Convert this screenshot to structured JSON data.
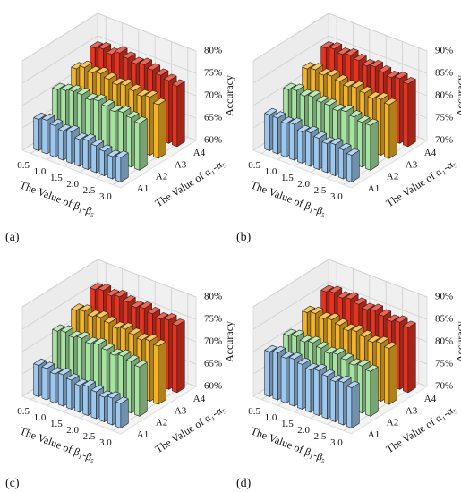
{
  "chart_data": [
    {
      "type": "bar3d",
      "panel_label": "(a)",
      "xlabel": "The Value of β₁-β₅",
      "ylabel": "The Value of α₁-α₅",
      "zlabel": "Accuracy",
      "x": [
        0.5,
        0.75,
        1.0,
        1.25,
        1.5,
        1.75,
        2.0,
        2.25,
        2.5,
        2.75,
        3.0
      ],
      "xlim": [
        0.25,
        3.25
      ],
      "xticks": [
        0.5,
        {
          "value": 1,
          "label": "1.0"
        },
        1.5,
        {
          "value": 2,
          "label": "2.0"
        },
        2.5,
        {
          "value": 3,
          "label": "3.0"
        }
      ],
      "zlim": [
        60,
        80
      ],
      "zticks": [
        {
          "value": 60,
          "label": "60%"
        },
        {
          "value": 65,
          "label": "65%"
        },
        {
          "value": 70,
          "label": "70%"
        },
        {
          "value": 75,
          "label": "75%"
        },
        {
          "value": 80,
          "label": "80%"
        }
      ],
      "series": [
        {
          "name": "A1",
          "color": "#9cc8ef",
          "values": [
            67,
            67.5,
            67,
            66.5,
            67,
            66,
            66.5,
            66,
            65.5,
            65,
            65.5
          ]
        },
        {
          "name": "A2",
          "color": "#a6e3a1",
          "values": [
            71,
            71.5,
            72,
            72,
            71.5,
            72,
            71.5,
            71,
            71.5,
            71,
            70.5
          ]
        },
        {
          "name": "A3",
          "color": "#f5b324",
          "values": [
            73,
            74,
            73.5,
            74,
            73.5,
            73,
            73.5,
            73,
            72.5,
            73,
            72
          ]
        },
        {
          "name": "A4",
          "color": "#e8321e",
          "values": [
            75,
            75.5,
            75,
            76,
            75.5,
            75,
            75.5,
            75,
            74.5,
            74,
            73.5
          ]
        }
      ]
    },
    {
      "type": "bar3d",
      "panel_label": "(b)",
      "xlabel": "The Value of β₁-β₅",
      "ylabel": "The Value of α₁-α₅",
      "zlabel": "Accuracy",
      "x": [
        0.5,
        0.75,
        1.0,
        1.25,
        1.5,
        1.75,
        2.0,
        2.25,
        2.5,
        2.75,
        3.0
      ],
      "xlim": [
        0.25,
        3.25
      ],
      "xticks": [
        0.5,
        {
          "value": 1,
          "label": "1.0"
        },
        1.5,
        {
          "value": 2,
          "label": "2.0"
        },
        2.5,
        {
          "value": 3,
          "label": "3.0"
        }
      ],
      "zlim": [
        70,
        90
      ],
      "zticks": [
        {
          "value": 70,
          "label": "70%"
        },
        {
          "value": 75,
          "label": "75%"
        },
        {
          "value": 80,
          "label": "80%"
        },
        {
          "value": 85,
          "label": "85%"
        },
        {
          "value": 90,
          "label": "90%"
        }
      ],
      "series": [
        {
          "name": "A1",
          "color": "#9cc8ef",
          "values": [
            78,
            78,
            77.5,
            78,
            77,
            77.5,
            77,
            76.5,
            77,
            76.5,
            76
          ]
        },
        {
          "name": "A2",
          "color": "#a6e3a1",
          "values": [
            81,
            81.5,
            81,
            81.5,
            81,
            81,
            80.5,
            81,
            80.5,
            80,
            80
          ]
        },
        {
          "name": "A3",
          "color": "#f5b324",
          "values": [
            83,
            83.5,
            83,
            83.5,
            83,
            82.5,
            83,
            82.5,
            82,
            82.5,
            82
          ]
        },
        {
          "name": "A4",
          "color": "#e8321e",
          "values": [
            85,
            85.5,
            85,
            85.5,
            85,
            84.5,
            85,
            84.5,
            84,
            84.5,
            84
          ]
        }
      ]
    },
    {
      "type": "bar3d",
      "panel_label": "(c)",
      "xlabel": "The Value of β₁-β₅",
      "ylabel": "The Value of α₁-α₅",
      "zlabel": "Accuracy",
      "x": [
        0.5,
        0.75,
        1.0,
        1.25,
        1.5,
        1.75,
        2.0,
        2.25,
        2.5,
        2.75,
        3.0
      ],
      "xlim": [
        0.25,
        3.25
      ],
      "xticks": [
        0.5,
        {
          "value": 1,
          "label": "1.0"
        },
        1.5,
        {
          "value": 2,
          "label": "2.0"
        },
        2.5,
        {
          "value": 3,
          "label": "3.0"
        }
      ],
      "zlim": [
        60,
        80
      ],
      "zticks": [
        {
          "value": 60,
          "label": "60%"
        },
        {
          "value": 65,
          "label": "65%"
        },
        {
          "value": 70,
          "label": "70%"
        },
        {
          "value": 75,
          "label": "75%"
        },
        {
          "value": 80,
          "label": "80%"
        }
      ],
      "series": [
        {
          "name": "A1",
          "color": "#9cc8ef",
          "values": [
            67,
            67,
            66.5,
            67,
            66.5,
            66,
            66.5,
            66,
            65.5,
            66,
            65.5
          ]
        },
        {
          "name": "A2",
          "color": "#a6e3a1",
          "values": [
            72,
            72.5,
            72,
            72.5,
            72,
            72.5,
            72,
            71.5,
            72,
            71.5,
            71
          ]
        },
        {
          "name": "A3",
          "color": "#f5b324",
          "values": [
            74,
            74.5,
            74,
            74.5,
            74,
            73.5,
            74,
            73.5,
            73,
            73.5,
            73
          ]
        },
        {
          "name": "A4",
          "color": "#e8321e",
          "values": [
            76,
            76.5,
            76,
            76.5,
            76,
            75.5,
            76,
            75.5,
            75,
            75.5,
            75
          ]
        }
      ]
    },
    {
      "type": "bar3d",
      "panel_label": "(d)",
      "xlabel": "The Value of β₁-β₅",
      "ylabel": "The Value of α₁-α₅",
      "zlabel": "Accuracy",
      "x": [
        0.5,
        0.75,
        1.0,
        1.25,
        1.5,
        1.75,
        2.0,
        2.25,
        2.5,
        2.75,
        3.0
      ],
      "xlim": [
        0.25,
        3.25
      ],
      "xticks": [
        0.5,
        {
          "value": 1,
          "label": "1.0"
        },
        1.5,
        {
          "value": 2,
          "label": "2.0"
        },
        2.5,
        {
          "value": 3,
          "label": "3.0"
        }
      ],
      "zlim": [
        70,
        90
      ],
      "zticks": [
        {
          "value": 70,
          "label": "70%"
        },
        {
          "value": 75,
          "label": "75%"
        },
        {
          "value": 80,
          "label": "80%"
        },
        {
          "value": 85,
          "label": "85%"
        },
        {
          "value": 90,
          "label": "90%"
        }
      ],
      "series": [
        {
          "name": "A1",
          "color": "#9cc8ef",
          "values": [
            80,
            80.5,
            80,
            80.5,
            80,
            79.5,
            80,
            79.5,
            79,
            79.5,
            79
          ]
        },
        {
          "name": "A2",
          "color": "#a6e3a1",
          "values": [
            81,
            81.5,
            81,
            81.5,
            81,
            80.5,
            81,
            80.5,
            80,
            80.5,
            80
          ]
        },
        {
          "name": "A3",
          "color": "#f5b324",
          "values": [
            83.5,
            84,
            83.5,
            84,
            83.5,
            83,
            83.5,
            83,
            82.5,
            83,
            82.5
          ]
        },
        {
          "name": "A4",
          "color": "#e8321e",
          "values": [
            85.5,
            86,
            85.5,
            86,
            85.5,
            85,
            85.5,
            85,
            84.5,
            85,
            84.5
          ]
        }
      ]
    }
  ]
}
